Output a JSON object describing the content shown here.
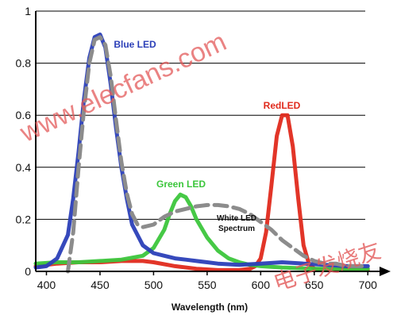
{
  "chart_data": {
    "type": "line",
    "title": "",
    "xlabel": "Wavelength (nm)",
    "ylabel": "",
    "xlim": [
      390,
      705
    ],
    "ylim": [
      0,
      1
    ],
    "xticks": [
      "400",
      "450",
      "500",
      "550",
      "600",
      "650",
      "700"
    ],
    "yticks": [
      "0",
      "0.2",
      "0.4",
      "0.6",
      "0.8",
      "1"
    ],
    "grid": "horizontal",
    "series": [
      {
        "name": "Blue LED",
        "color": "#2b3fb8",
        "x": [
          390,
          400,
          410,
          420,
          425,
          430,
          435,
          440,
          445,
          450,
          455,
          460,
          465,
          470,
          475,
          480,
          490,
          500,
          510,
          520,
          530,
          540,
          550,
          560,
          580,
          600,
          620,
          640,
          660,
          680,
          700
        ],
        "y": [
          0.015,
          0.02,
          0.05,
          0.14,
          0.28,
          0.46,
          0.66,
          0.82,
          0.9,
          0.91,
          0.86,
          0.72,
          0.55,
          0.4,
          0.28,
          0.18,
          0.1,
          0.07,
          0.06,
          0.05,
          0.045,
          0.04,
          0.035,
          0.03,
          0.025,
          0.03,
          0.035,
          0.03,
          0.025,
          0.02,
          0.02
        ]
      },
      {
        "name": "Green LED",
        "color": "#3cc63c",
        "x": [
          390,
          410,
          430,
          450,
          470,
          490,
          500,
          510,
          515,
          520,
          525,
          530,
          535,
          540,
          550,
          560,
          570,
          580,
          590,
          600,
          620,
          650,
          700
        ],
        "y": [
          0.03,
          0.035,
          0.035,
          0.04,
          0.045,
          0.06,
          0.09,
          0.16,
          0.22,
          0.27,
          0.295,
          0.285,
          0.25,
          0.2,
          0.13,
          0.08,
          0.05,
          0.035,
          0.025,
          0.02,
          0.015,
          0.01,
          0.01
        ]
      },
      {
        "name": "RedLED",
        "color": "#e02a1c",
        "x": [
          390,
          410,
          430,
          450,
          470,
          490,
          500,
          520,
          540,
          560,
          580,
          590,
          595,
          600,
          605,
          610,
          615,
          620,
          625,
          630,
          635,
          640,
          645,
          650,
          660,
          680,
          700
        ],
        "y": [
          0.02,
          0.03,
          0.035,
          0.035,
          0.04,
          0.04,
          0.035,
          0.02,
          0.01,
          0.005,
          0.005,
          0.01,
          0.02,
          0.05,
          0.15,
          0.33,
          0.52,
          0.6,
          0.6,
          0.48,
          0.28,
          0.1,
          0.03,
          0.01,
          0.005,
          0.005,
          0.005
        ]
      },
      {
        "name": "White LED Spectrum",
        "color": "#8c8c8c",
        "dashed": true,
        "x": [
          420,
          425,
          430,
          435,
          440,
          445,
          450,
          455,
          460,
          465,
          470,
          475,
          480,
          485,
          490,
          500,
          510,
          520,
          530,
          540,
          550,
          560,
          570,
          580,
          590,
          600,
          610,
          620,
          630,
          640,
          650,
          660,
          670,
          680,
          690,
          700
        ],
        "y": [
          0.0,
          0.15,
          0.4,
          0.62,
          0.8,
          0.89,
          0.9,
          0.87,
          0.75,
          0.58,
          0.42,
          0.3,
          0.22,
          0.18,
          0.17,
          0.18,
          0.21,
          0.23,
          0.24,
          0.25,
          0.255,
          0.255,
          0.25,
          0.24,
          0.22,
          0.19,
          0.16,
          0.12,
          0.09,
          0.06,
          0.04,
          0.03,
          0.03,
          0.02,
          0.02,
          0.02
        ]
      }
    ],
    "annotations": [
      {
        "text": "Blue LED",
        "color": "#2b3fb8"
      },
      {
        "text": "Green LED",
        "color": "#3cc63c"
      },
      {
        "text": "RedLED",
        "color": "#e02a1c"
      },
      {
        "text": "White LED",
        "color": "#111111"
      },
      {
        "text": "Spectrum",
        "color": "#111111"
      }
    ]
  },
  "watermark": {
    "url": "www.elecfans.com",
    "cn": "电子发烧友",
    "color": "#e35a5a"
  }
}
